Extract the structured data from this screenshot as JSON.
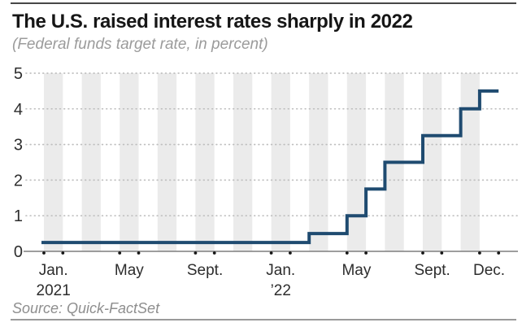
{
  "header": {
    "title": "The U.S. raised interest rates sharply in 2022",
    "subtitle": "(Federal funds target rate, in percent)"
  },
  "footer": {
    "source": "Source: Quick-FactSet"
  },
  "chart_data": {
    "type": "line",
    "line_style": "step",
    "title": "The U.S. raised interest rates sharply in 2022",
    "subtitle": "(Federal funds target rate, in percent)",
    "source": "Source: Quick-FactSet",
    "ylabel": "Federal funds target rate (percent)",
    "ylim": [
      0,
      5
    ],
    "y_ticks": [
      0,
      1,
      2,
      3,
      4,
      5
    ],
    "x_range_months": 24,
    "x_start": "Jan. 2021",
    "x_end": "Dec. 2022",
    "grid": "dotted horizontal gridlines; alternating light-gray vertical month stripes",
    "legend": "none",
    "series": [
      {
        "name": "Federal funds target rate",
        "steps": [
          {
            "label": "Jan. 2021",
            "month_index": 0,
            "value": 0.25
          },
          {
            "label": "Mar. 2022",
            "month_index": 14,
            "value": 0.5
          },
          {
            "label": "May 2022",
            "month_index": 16,
            "value": 1.0
          },
          {
            "label": "June 2022",
            "month_index": 17,
            "value": 1.75
          },
          {
            "label": "July 2022",
            "month_index": 18,
            "value": 2.5
          },
          {
            "label": "Sept. 2022",
            "month_index": 20,
            "value": 3.25
          },
          {
            "label": "Nov. 2022",
            "month_index": 22,
            "value": 4.0
          },
          {
            "label": "Dec. 2022",
            "month_index": 23,
            "value": 4.5
          }
        ]
      }
    ],
    "x_tick_labels": [
      {
        "line1": "Jan.",
        "line2": "2021",
        "month_index": 0
      },
      {
        "line1": "May",
        "line2": "",
        "month_index": 4
      },
      {
        "line1": "Sept.",
        "line2": "",
        "month_index": 8
      },
      {
        "line1": "Jan.",
        "line2": "’22",
        "month_index": 12
      },
      {
        "line1": "May",
        "line2": "",
        "month_index": 16
      },
      {
        "line1": "Sept.",
        "line2": "",
        "month_index": 20
      },
      {
        "line1": "Dec.",
        "line2": "",
        "month_index": 23
      }
    ],
    "colors": {
      "line": "#1f4b70",
      "stripe": "#ebebeb",
      "grid": "#bfbfbf",
      "axis": "#7f7f7f",
      "tick_dot": "#161616",
      "tick_text": "#2d2d2d"
    }
  }
}
